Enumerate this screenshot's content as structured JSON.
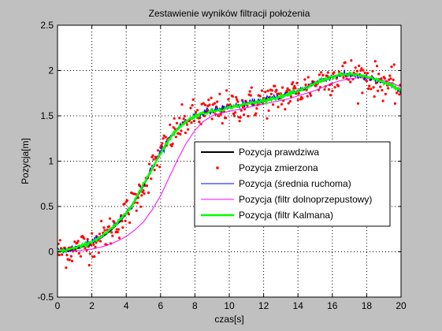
{
  "chart_data": {
    "type": "line",
    "title": "Zestawienie wyników filtracji położenia",
    "xlabel": "czas[s]",
    "ylabel": "Pozycja[m]",
    "xlim": [
      0,
      20
    ],
    "ylim": [
      -0.5,
      2.5
    ],
    "xticks": [
      0,
      2,
      4,
      6,
      8,
      10,
      12,
      14,
      16,
      18,
      20
    ],
    "yticks": [
      -0.5,
      0,
      0.5,
      1,
      1.5,
      2,
      2.5
    ],
    "xtick_labels": [
      "0",
      "2",
      "4",
      "6",
      "8",
      "10",
      "12",
      "14",
      "16",
      "18",
      "20"
    ],
    "ytick_labels": [
      "-0.5",
      "0",
      "0.5",
      "1",
      "1.5",
      "2",
      "2.5"
    ],
    "grid": true,
    "legend_position": "center-right",
    "series": [
      {
        "name": "Pozycja prawdziwa",
        "style": "line",
        "color": "#000000",
        "x": [
          0,
          0.5,
          1,
          1.5,
          2,
          2.5,
          3,
          3.5,
          4,
          4.5,
          5,
          5.5,
          6,
          6.5,
          7,
          7.5,
          8,
          8.5,
          9,
          9.5,
          10,
          10.5,
          11,
          11.5,
          12,
          12.5,
          13,
          13.5,
          14,
          14.5,
          15,
          15.5,
          16,
          16.5,
          17,
          17.5,
          18,
          18.5,
          19,
          19.5,
          20
        ],
        "y": [
          0,
          0.01,
          0.03,
          0.06,
          0.1,
          0.15,
          0.22,
          0.31,
          0.42,
          0.56,
          0.73,
          0.91,
          1.09,
          1.24,
          1.36,
          1.44,
          1.5,
          1.53,
          1.55,
          1.57,
          1.59,
          1.61,
          1.63,
          1.65,
          1.67,
          1.69,
          1.71,
          1.74,
          1.77,
          1.81,
          1.86,
          1.9,
          1.93,
          1.95,
          1.96,
          1.95,
          1.93,
          1.9,
          1.87,
          1.83,
          1.78
        ]
      },
      {
        "name": "Pozycja zmierzona",
        "style": "points",
        "color": "#ff0000",
        "noise": 0.09
      },
      {
        "name": "Pozycja (średnia ruchoma)",
        "style": "line",
        "color": "#0000ff",
        "x": [
          0,
          0.5,
          1,
          1.5,
          2,
          2.5,
          3,
          3.5,
          4,
          4.5,
          5,
          5.5,
          6,
          6.5,
          7,
          7.5,
          8,
          8.5,
          9,
          9.5,
          10,
          10.5,
          11,
          11.5,
          12,
          12.5,
          13,
          13.5,
          14,
          14.5,
          15,
          15.5,
          16,
          16.5,
          17,
          17.5,
          18,
          18.5,
          19,
          19.5,
          20
        ],
        "y": [
          0.01,
          0.02,
          0.04,
          0.07,
          0.11,
          0.16,
          0.23,
          0.32,
          0.43,
          0.57,
          0.74,
          0.93,
          1.1,
          1.25,
          1.37,
          1.45,
          1.51,
          1.54,
          1.56,
          1.58,
          1.6,
          1.62,
          1.63,
          1.66,
          1.68,
          1.7,
          1.72,
          1.75,
          1.78,
          1.82,
          1.87,
          1.91,
          1.93,
          1.95,
          1.95,
          1.94,
          1.92,
          1.89,
          1.86,
          1.82,
          1.77
        ]
      },
      {
        "name": "Pozycja (filtr dolnoprzepustowy)",
        "style": "line",
        "color": "#ff00ff",
        "x": [
          0,
          0.5,
          1,
          1.5,
          2,
          2.5,
          3,
          3.5,
          4,
          4.5,
          5,
          5.5,
          6,
          6.5,
          7,
          7.5,
          8,
          8.5,
          9,
          9.5,
          10,
          10.5,
          11,
          11.5,
          12,
          12.5,
          13,
          13.5,
          14,
          14.5,
          15,
          15.5,
          16,
          16.5,
          17,
          17.5,
          18,
          18.5,
          19,
          19.5,
          20
        ],
        "y": [
          0,
          0,
          0.01,
          0.02,
          0.03,
          0.05,
          0.08,
          0.12,
          0.17,
          0.24,
          0.33,
          0.46,
          0.62,
          0.82,
          1.02,
          1.2,
          1.34,
          1.44,
          1.5,
          1.53,
          1.55,
          1.57,
          1.59,
          1.61,
          1.63,
          1.65,
          1.67,
          1.69,
          1.72,
          1.75,
          1.78,
          1.82,
          1.86,
          1.89,
          1.91,
          1.92,
          1.92,
          1.91,
          1.89,
          1.86,
          1.82
        ]
      },
      {
        "name": "Pozycja (filtr Kalmana)",
        "style": "line",
        "color": "#00ff00",
        "x": [
          0,
          0.5,
          1,
          1.5,
          2,
          2.5,
          3,
          3.5,
          4,
          4.5,
          5,
          5.5,
          6,
          6.5,
          7,
          7.5,
          8,
          8.5,
          9,
          9.5,
          10,
          10.5,
          11,
          11.5,
          12,
          12.5,
          13,
          13.5,
          14,
          14.5,
          15,
          15.5,
          16,
          16.5,
          17,
          17.5,
          18,
          18.5,
          19,
          19.5,
          20
        ],
        "y": [
          0,
          0.02,
          0.04,
          0.07,
          0.11,
          0.16,
          0.23,
          0.32,
          0.43,
          0.57,
          0.74,
          0.92,
          1.09,
          1.24,
          1.36,
          1.44,
          1.5,
          1.53,
          1.55,
          1.57,
          1.59,
          1.61,
          1.63,
          1.65,
          1.67,
          1.69,
          1.71,
          1.74,
          1.77,
          1.81,
          1.86,
          1.9,
          1.93,
          1.95,
          1.96,
          1.95,
          1.93,
          1.9,
          1.87,
          1.83,
          1.78
        ]
      }
    ]
  }
}
